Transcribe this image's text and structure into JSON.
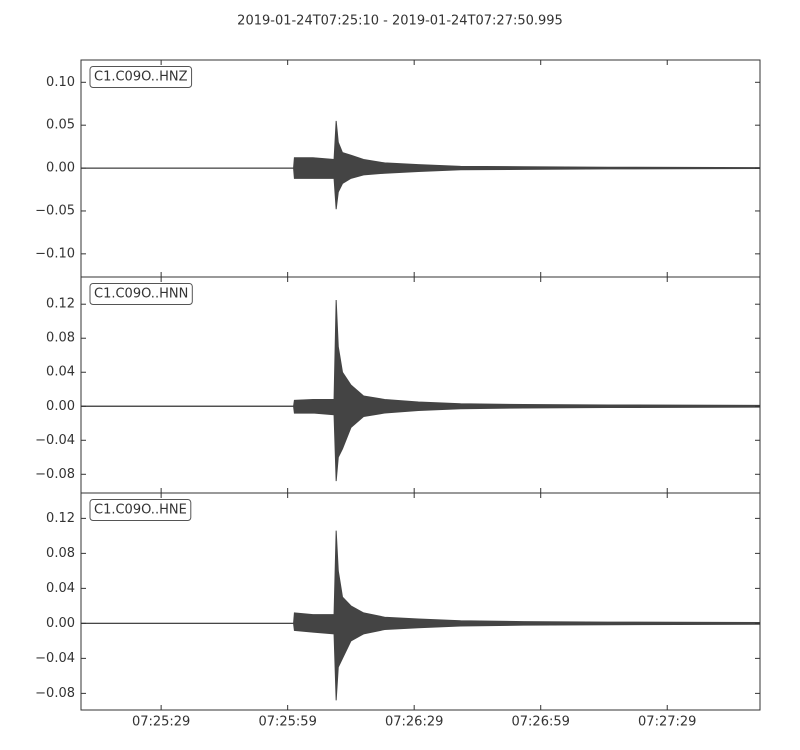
{
  "title": "2019-01-24T07:25:10  -  2019-01-24T07:27:50.995",
  "chart_data": [
    {
      "type": "area",
      "label": "C1.C09O..HNZ",
      "x": [
        0,
        50.4,
        50.6,
        55,
        60,
        60.5,
        61,
        62,
        64,
        67,
        72,
        80,
        90,
        105,
        125,
        160.995
      ],
      "series": [
        {
          "color": "#444444",
          "values": [
            0,
            0,
            0.012,
            0.012,
            0.01,
            0.055,
            0.03,
            0.018,
            0.015,
            0.01,
            0.006,
            0.004,
            0.002,
            0.0015,
            0.001,
            0.0005
          ]
        },
        {
          "color": "#444444",
          "values": [
            0,
            0,
            -0.012,
            -0.012,
            -0.012,
            -0.048,
            -0.028,
            -0.018,
            -0.012,
            -0.008,
            -0.006,
            -0.004,
            -0.002,
            -0.0015,
            -0.001,
            -0.0005
          ]
        }
      ],
      "ylim": [
        -0.127,
        0.126
      ],
      "yticks": [
        {
          "value": -0.1,
          "label": "−0.10"
        },
        {
          "value": -0.05,
          "label": "−0.05"
        },
        {
          "value": 0,
          "label": "0.00"
        },
        {
          "value": 0.05,
          "label": "0.05"
        },
        {
          "value": 0.1,
          "label": "0.10"
        }
      ]
    },
    {
      "type": "area",
      "label": "C1.C09O..HNN",
      "x": [
        0,
        50.4,
        50.6,
        55,
        60,
        60.5,
        61,
        62,
        64,
        67,
        72,
        80,
        90,
        105,
        125,
        160.995
      ],
      "series": [
        {
          "color": "#444444",
          "values": [
            0,
            0,
            0.007,
            0.008,
            0.008,
            0.125,
            0.07,
            0.04,
            0.025,
            0.012,
            0.008,
            0.005,
            0.003,
            0.002,
            0.0015,
            0.001
          ]
        },
        {
          "color": "#444444",
          "values": [
            0,
            0,
            -0.008,
            -0.008,
            -0.01,
            -0.088,
            -0.06,
            -0.05,
            -0.025,
            -0.012,
            -0.008,
            -0.005,
            -0.003,
            -0.002,
            -0.0015,
            -0.001
          ]
        }
      ],
      "ylim": [
        -0.102,
        0.152
      ],
      "yticks": [
        {
          "value": -0.08,
          "label": "−0.08"
        },
        {
          "value": -0.04,
          "label": "−0.04"
        },
        {
          "value": 0,
          "label": "0.00"
        },
        {
          "value": 0.04,
          "label": "0.04"
        },
        {
          "value": 0.08,
          "label": "0.08"
        },
        {
          "value": 0.12,
          "label": "0.12"
        }
      ]
    },
    {
      "type": "area",
      "label": "C1.C09O..HNE",
      "x": [
        0,
        50.4,
        50.6,
        55,
        60,
        60.5,
        61,
        62,
        64,
        67,
        72,
        80,
        90,
        105,
        125,
        160.995
      ],
      "series": [
        {
          "color": "#444444",
          "values": [
            0,
            0,
            0.012,
            0.01,
            0.01,
            0.106,
            0.06,
            0.03,
            0.02,
            0.012,
            0.007,
            0.005,
            0.003,
            0.002,
            0.0015,
            0.001
          ]
        },
        {
          "color": "#444444",
          "values": [
            0,
            0,
            -0.008,
            -0.01,
            -0.012,
            -0.088,
            -0.05,
            -0.04,
            -0.02,
            -0.012,
            -0.007,
            -0.005,
            -0.003,
            -0.002,
            -0.0015,
            -0.001
          ]
        }
      ],
      "ylim": [
        -0.099,
        0.149
      ],
      "yticks": [
        {
          "value": -0.08,
          "label": "−0.08"
        },
        {
          "value": -0.04,
          "label": "−0.04"
        },
        {
          "value": 0,
          "label": "0.00"
        },
        {
          "value": 0.04,
          "label": "0.04"
        },
        {
          "value": 0.08,
          "label": "0.08"
        },
        {
          "value": 0.12,
          "label": "0.12"
        }
      ],
      "xlim": [
        0,
        160.995
      ],
      "xticks": [
        {
          "value": 19,
          "label": "07:25:29"
        },
        {
          "value": 49,
          "label": "07:25:59"
        },
        {
          "value": 79,
          "label": "07:26:29"
        },
        {
          "value": 109,
          "label": "07:26:59"
        },
        {
          "value": 139,
          "label": "07:27:29"
        }
      ]
    }
  ]
}
